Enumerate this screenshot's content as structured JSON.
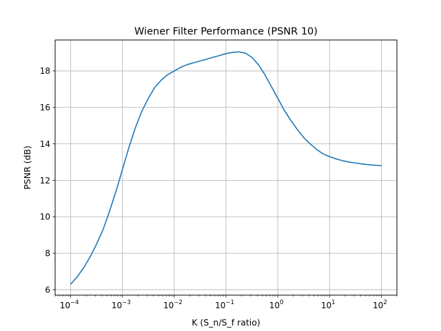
{
  "chart_data": {
    "type": "line",
    "title": "Wiener Filter Performance (PSNR 10)",
    "xlabel": "K (S_n/S_f ratio)",
    "ylabel": "PSNR (dB)",
    "xscale": "log",
    "xlim": [
      5e-05,
      200
    ],
    "ylim": [
      5.7,
      19.7
    ],
    "grid": true,
    "line_color": "#1f77b4",
    "x_ticks": [
      {
        "value": 0.0001,
        "base": "10",
        "exp": "−4"
      },
      {
        "value": 0.001,
        "base": "10",
        "exp": "−3"
      },
      {
        "value": 0.01,
        "base": "10",
        "exp": "−2"
      },
      {
        "value": 0.1,
        "base": "10",
        "exp": "−1"
      },
      {
        "value": 1,
        "base": "10",
        "exp": "0"
      },
      {
        "value": 10,
        "base": "10",
        "exp": "1"
      },
      {
        "value": 100,
        "base": "10",
        "exp": "2"
      }
    ],
    "y_ticks": [
      {
        "value": 6,
        "label": "6"
      },
      {
        "value": 8,
        "label": "8"
      },
      {
        "value": 10,
        "label": "10"
      },
      {
        "value": 12,
        "label": "12"
      },
      {
        "value": 14,
        "label": "14"
      },
      {
        "value": 16,
        "label": "16"
      },
      {
        "value": 18,
        "label": "18"
      }
    ],
    "series": [
      {
        "x": [
          0.0001,
          0.000133,
          0.000178,
          0.000237,
          0.000316,
          0.000422,
          0.000562,
          0.00075,
          0.001,
          0.00133,
          0.00178,
          0.00237,
          0.00316,
          0.00422,
          0.00562,
          0.0075,
          0.01,
          0.0133,
          0.0178,
          0.0237,
          0.0316,
          0.0422,
          0.0562,
          0.075,
          0.1,
          0.133,
          0.178,
          0.237,
          0.316,
          0.422,
          0.562,
          0.75,
          1.0,
          1.33,
          1.78,
          2.37,
          3.16,
          4.22,
          5.62,
          7.5,
          10,
          13.3,
          17.8,
          23.7,
          31.6,
          42.2,
          56.2,
          75,
          100
        ],
        "y": [
          6.3,
          6.7,
          7.2,
          7.8,
          8.5,
          9.3,
          10.3,
          11.4,
          12.6,
          13.8,
          14.9,
          15.8,
          16.5,
          17.1,
          17.5,
          17.8,
          18.0,
          18.2,
          18.35,
          18.45,
          18.55,
          18.65,
          18.75,
          18.85,
          18.95,
          19.02,
          19.05,
          18.98,
          18.75,
          18.35,
          17.8,
          17.15,
          16.5,
          15.85,
          15.3,
          14.8,
          14.35,
          14.0,
          13.7,
          13.45,
          13.3,
          13.18,
          13.08,
          13.0,
          12.95,
          12.9,
          12.86,
          12.83,
          12.8
        ]
      }
    ]
  }
}
